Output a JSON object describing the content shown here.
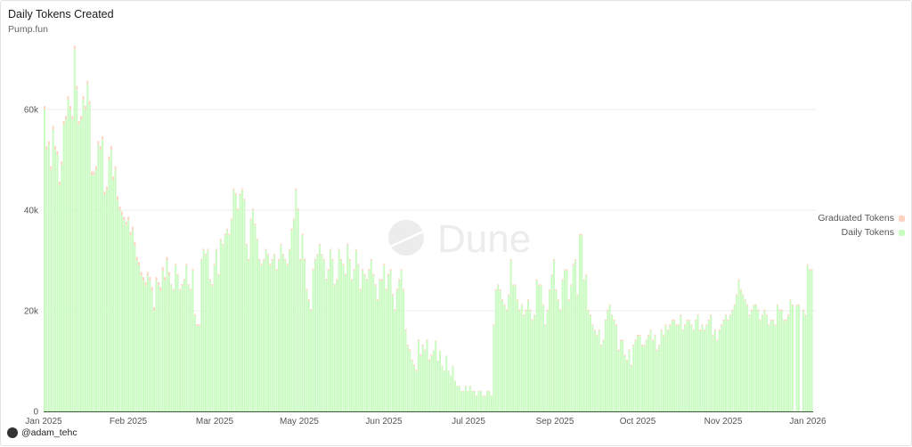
{
  "header": {
    "title": "Daily Tokens Created",
    "subtitle": "Pump.fun"
  },
  "footer": {
    "author": "@adam_tehc"
  },
  "watermark": "Dune",
  "chart_data": {
    "type": "bar",
    "stacked": true,
    "title": "Daily Tokens Created",
    "subtitle": "Pump.fun",
    "x_tick_labels": [
      "Jan 2025",
      "Feb 2025",
      "Mar 2025",
      "May 2025",
      "Jun 2025",
      "Jul 2025",
      "Sep 2025",
      "Oct 2025",
      "Nov 2025",
      "Jan 2026"
    ],
    "y_ticks": [
      0,
      20000,
      40000,
      60000
    ],
    "y_tick_labels": [
      "0",
      "20k",
      "40k",
      "60k"
    ],
    "ylim": [
      0,
      72000
    ],
    "grid": true,
    "legend_placement": "right",
    "colors": {
      "Daily Tokens": "#c8fcc0",
      "Graduated Tokens": "#fdd3bf"
    },
    "legend": [
      "Graduated Tokens",
      "Daily Tokens"
    ],
    "series": [
      {
        "name": "Daily Tokens",
        "values": [
          60000,
          52000,
          53000,
          48000,
          56000,
          52000,
          51000,
          45000,
          49000,
          57000,
          58000,
          62000,
          60000,
          58000,
          72000,
          64000,
          57000,
          58000,
          62000,
          60000,
          65000,
          61000,
          47000,
          47000,
          48000,
          53000,
          52000,
          54000,
          43000,
          44000,
          50000,
          52000,
          46000,
          48000,
          42000,
          40000,
          39000,
          38000,
          37000,
          38000,
          35000,
          36000,
          33000,
          30000,
          29000,
          27000,
          26000,
          25000,
          27000,
          26000,
          24000,
          20000,
          26000,
          25000,
          24000,
          28000,
          26000,
          30000,
          27000,
          25000,
          24000,
          29000,
          27000,
          24000,
          25000,
          26000,
          29000,
          25000,
          24000,
          28000,
          19000,
          17000,
          17000,
          30000,
          32000,
          31000,
          32000,
          26000,
          25000,
          29000,
          32000,
          27000,
          34000,
          33000,
          35000,
          36000,
          35000,
          38000,
          44000,
          43000,
          40000,
          43000,
          44000,
          42000,
          33000,
          30000,
          38000,
          40000,
          37000,
          34000,
          30000,
          29000,
          30000,
          32000,
          31000,
          29000,
          30000,
          31000,
          28000,
          30000,
          33000,
          31000,
          30000,
          29000,
          32000,
          36000,
          38000,
          44000,
          40000,
          30000,
          35000,
          30000,
          24000,
          22000,
          20000,
          28000,
          30000,
          31000,
          33000,
          31000,
          30000,
          26000,
          28000,
          32000,
          30000,
          25000,
          26000,
          32000,
          30000,
          29000,
          27000,
          33000,
          30000,
          26000,
          28000,
          32000,
          29000,
          24000,
          28000,
          27000,
          26000,
          28000,
          30000,
          27000,
          25000,
          22000,
          26000,
          26000,
          29000,
          24000,
          27000,
          28000,
          23000,
          20000,
          24000,
          26000,
          28000,
          24000,
          16000,
          13000,
          12000,
          10000,
          9000,
          8000,
          14000,
          11000,
          13000,
          12000,
          14000,
          10000,
          11000,
          12000,
          14000,
          10000,
          12000,
          9000,
          8000,
          11000,
          8000,
          7000,
          9000,
          6000,
          5000,
          5000,
          4000,
          4000,
          5000,
          4000,
          5000,
          4000,
          4000,
          3000,
          4000,
          4000,
          3000,
          3000,
          4000,
          4000,
          3000,
          17000,
          24000,
          25000,
          24000,
          22000,
          21000,
          20000,
          23000,
          30000,
          25000,
          25000,
          22000,
          20000,
          21000,
          19000,
          20000,
          22000,
          20000,
          18000,
          19000,
          26000,
          25000,
          25000,
          21000,
          17000,
          20000,
          24000,
          27000,
          30000,
          24000,
          22000,
          20000,
          26000,
          28000,
          28000,
          22000,
          25000,
          29000,
          30000,
          23000,
          35000,
          35000,
          26000,
          27000,
          20000,
          19000,
          17000,
          16000,
          15000,
          16000,
          13000,
          14000,
          18000,
          20000,
          21000,
          19000,
          18000,
          17000,
          12000,
          14000,
          14000,
          11000,
          10000,
          12000,
          9000,
          13000,
          14000,
          15000,
          15000,
          13000,
          13000,
          14000,
          15000,
          16000,
          14000,
          15000,
          12000,
          13000,
          16000,
          15000,
          17000,
          16000,
          17000,
          18000,
          18000,
          17000,
          17000,
          19000,
          16000,
          17000,
          18000,
          18000,
          17000,
          16000,
          18000,
          19000,
          16000,
          17000,
          16000,
          17000,
          18000,
          19000,
          15000,
          16000,
          14000,
          16000,
          17000,
          18000,
          19000,
          18000,
          19000,
          20000,
          21000,
          23000,
          26000,
          24000,
          23000,
          22000,
          21000,
          19000,
          20000,
          21000,
          21000,
          20000,
          18000,
          19000,
          20000,
          19000,
          17000,
          18000,
          18000,
          17000,
          21000,
          20000,
          20000,
          18000,
          18000,
          19000,
          22000,
          21000,
          0,
          21000,
          21000,
          0,
          20000,
          19000,
          29000,
          28000,
          28000
        ]
      },
      {
        "name": "Graduated Tokens",
        "values": [
          700,
          700,
          700,
          700,
          700,
          700,
          700,
          700,
          700,
          700,
          700,
          700,
          700,
          700,
          700,
          700,
          700,
          700,
          700,
          700,
          700,
          700,
          700,
          700,
          700,
          700,
          700,
          700,
          700,
          700,
          700,
          700,
          700,
          700,
          700,
          700,
          700,
          700,
          700,
          700,
          700,
          700,
          700,
          700,
          700,
          700,
          700,
          700,
          700,
          700,
          700,
          700,
          700,
          700,
          700,
          700,
          700,
          700,
          700,
          300,
          300,
          300,
          300,
          300,
          300,
          300,
          300,
          300,
          300,
          300,
          300,
          300,
          300,
          300,
          300,
          300,
          300,
          300,
          300,
          300,
          300,
          300,
          300,
          300,
          300,
          300,
          300,
          300,
          300,
          300,
          300,
          300,
          300,
          300,
          300,
          300,
          300,
          300,
          300,
          300,
          300,
          300,
          300,
          300,
          300,
          300,
          300,
          300,
          300,
          300,
          300,
          300,
          300,
          300,
          300,
          300,
          300,
          300,
          300,
          300,
          300,
          300,
          300,
          300,
          300,
          300,
          300,
          300,
          300,
          300,
          300,
          300,
          300,
          300,
          300,
          300,
          300,
          300,
          300,
          300,
          300,
          300,
          300,
          300,
          300,
          300,
          300,
          300,
          300,
          300,
          300,
          300,
          300,
          300,
          300,
          300,
          300,
          300,
          300,
          300,
          300,
          300,
          300,
          300,
          300,
          300,
          300,
          300,
          300,
          300,
          300,
          300,
          300,
          300,
          300,
          300,
          300,
          300,
          300,
          300,
          300,
          100,
          100,
          100,
          100,
          100,
          100,
          100,
          100,
          100,
          100,
          100,
          100,
          100,
          100,
          100,
          100,
          100,
          100,
          100,
          100,
          100,
          100,
          100,
          100,
          100,
          100,
          100,
          100,
          250,
          250,
          250,
          250,
          250,
          250,
          250,
          250,
          250,
          250,
          250,
          250,
          250,
          250,
          250,
          250,
          250,
          250,
          250,
          250,
          250,
          250,
          250,
          250,
          250,
          250,
          250,
          250,
          250,
          250,
          250,
          250,
          250,
          250,
          250,
          250,
          250,
          250,
          250,
          250,
          250,
          250,
          250,
          250,
          250,
          250,
          250,
          250,
          250,
          250,
          250,
          250,
          250,
          250,
          250,
          250,
          250,
          250,
          250,
          250,
          250,
          250,
          250,
          250,
          250,
          250,
          250,
          250,
          250,
          250,
          250,
          250,
          250,
          250,
          250,
          250,
          250,
          250,
          250,
          250,
          250,
          250,
          250,
          250,
          250,
          250,
          250,
          250,
          250,
          250,
          250,
          250,
          250,
          250,
          250,
          250,
          250,
          250,
          250,
          250,
          250,
          250,
          250,
          250,
          250,
          250,
          250,
          250,
          250,
          250,
          250,
          250,
          250,
          250,
          250,
          250,
          250,
          250,
          250,
          250,
          250,
          250,
          250,
          250,
          250,
          250,
          250,
          250,
          250,
          250,
          250,
          250,
          250,
          250,
          250,
          250,
          250,
          250,
          250,
          250,
          0,
          250,
          250,
          0,
          250,
          250,
          250,
          250,
          250
        ]
      }
    ]
  }
}
